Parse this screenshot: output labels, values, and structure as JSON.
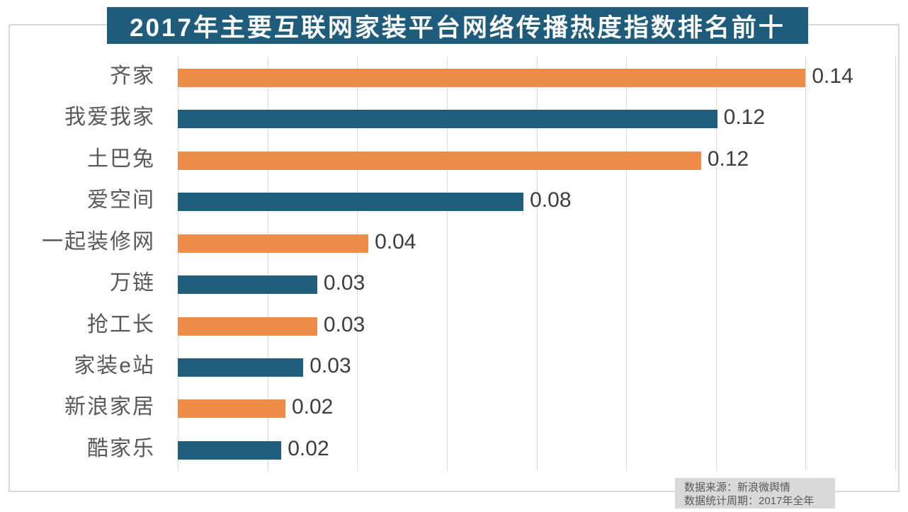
{
  "title": "2017年主要互联网家装平台网络传播热度指数排名前十",
  "footer": {
    "source_line": "数据来源：新浪微舆情",
    "period_line": "数据统计周期：2017年全年"
  },
  "colors": {
    "title_bg": "#1f5c7b",
    "title_text": "#ffffff",
    "bar_orange": "#ee8c48",
    "bar_blue": "#215d7d",
    "gridline": "#d9d9d9",
    "frame_border": "#d9d9d9",
    "category_label": "#595959",
    "value_label": "#3d3d3d",
    "footer_bg": "#d9d9d9",
    "footer_text": "#595959"
  },
  "chart_data": {
    "type": "bar",
    "orientation": "horizontal",
    "title": "2017年主要互联网家装平台网络传播热度指数排名前十",
    "categories": [
      "齐家",
      "我爱我家",
      "土巴兔",
      "爱空间",
      "一起装修网",
      "万链",
      "抢工长",
      "家装e站",
      "新浪家居",
      "酷家乐"
    ],
    "values": [
      0.14,
      0.1203,
      0.1167,
      0.0771,
      0.0425,
      0.0311,
      0.0311,
      0.028,
      0.024,
      0.0231
    ],
    "data_labels": [
      "0.14",
      "0.12",
      "0.12",
      "0.08",
      "0.04",
      "0.03",
      "0.03",
      "0.03",
      "0.02",
      "0.02"
    ],
    "bar_colors": [
      "#ee8c48",
      "#215d7d",
      "#ee8c48",
      "#215d7d",
      "#ee8c48",
      "#215d7d",
      "#ee8c48",
      "#215d7d",
      "#ee8c48",
      "#215d7d"
    ],
    "xlim": [
      0,
      0.16
    ],
    "grid_step": 0.02,
    "grid": true,
    "legend": false,
    "value_axis_shown": false
  }
}
